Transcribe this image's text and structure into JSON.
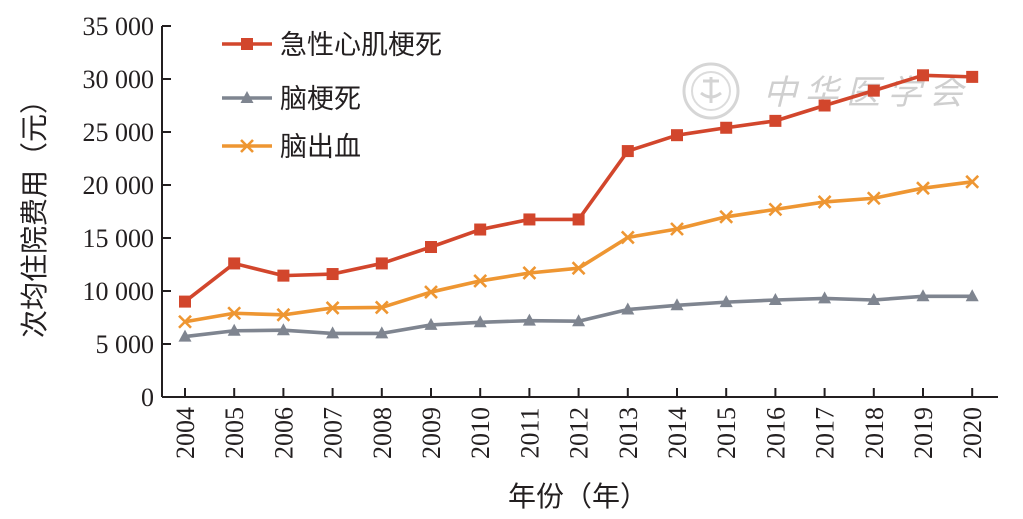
{
  "chart_data": {
    "type": "line",
    "xlabel": "年份（年）",
    "ylabel": "次均住院费用（元）",
    "ylim": [
      0,
      35000
    ],
    "yticks": [
      0,
      5000,
      10000,
      15000,
      20000,
      25000,
      30000,
      35000
    ],
    "ytick_labels": [
      "0",
      "5 000",
      "10 000",
      "15 000",
      "20 000",
      "25 000",
      "30 000",
      "35 000"
    ],
    "categories": [
      "2004",
      "2005",
      "2006",
      "2007",
      "2008",
      "2009",
      "2010",
      "2011",
      "2012",
      "2013",
      "2014",
      "2015",
      "2016",
      "2017",
      "2018",
      "2019",
      "2020"
    ],
    "grid": false,
    "legend_position": "top-left",
    "series": [
      {
        "name": "急性心肌梗死",
        "color": "#d2462c",
        "marker": "square",
        "values": [
          9000,
          12600,
          11450,
          11600,
          12600,
          14150,
          15800,
          16750,
          16750,
          23200,
          24700,
          25400,
          26050,
          27500,
          28900,
          30350,
          30200
        ]
      },
      {
        "name": "脑梗死",
        "color": "#7f8590",
        "marker": "triangle",
        "values": [
          5700,
          6250,
          6300,
          6000,
          6000,
          6800,
          7050,
          7200,
          7150,
          8250,
          8650,
          8950,
          9150,
          9300,
          9150,
          9500,
          9500
        ]
      },
      {
        "name": "脑出血",
        "color": "#ee9632",
        "marker": "x",
        "values": [
          7100,
          7900,
          7750,
          8400,
          8450,
          9900,
          10950,
          11700,
          12150,
          15050,
          15850,
          17000,
          17700,
          18400,
          18750,
          19700,
          20300
        ]
      }
    ],
    "watermark": {
      "icon": "seal-logo-icon",
      "text": "中华医学会"
    }
  }
}
